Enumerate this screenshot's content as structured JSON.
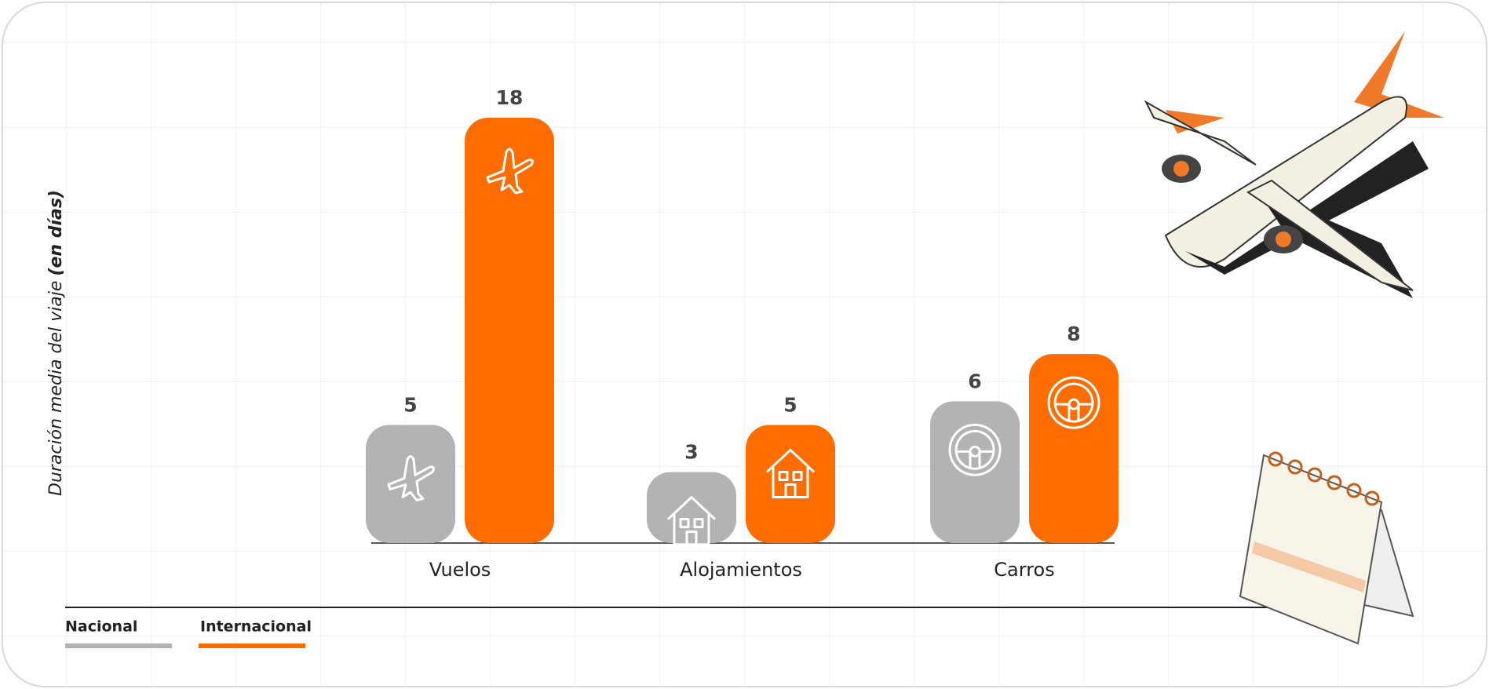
{
  "chart_data": {
    "type": "bar",
    "y_label": "Duración media del viaje",
    "y_label_emphasis": "(en días)",
    "categories": [
      "Vuelos",
      "Alojamientos",
      "Carros"
    ],
    "series": [
      {
        "name": "Nacional",
        "color": "#b3b3b3",
        "values": [
          5,
          3,
          6
        ]
      },
      {
        "name": "Internacional",
        "color": "#ff6d00",
        "values": [
          18,
          5,
          8
        ]
      }
    ],
    "ylim": [
      0,
      18
    ]
  }
}
